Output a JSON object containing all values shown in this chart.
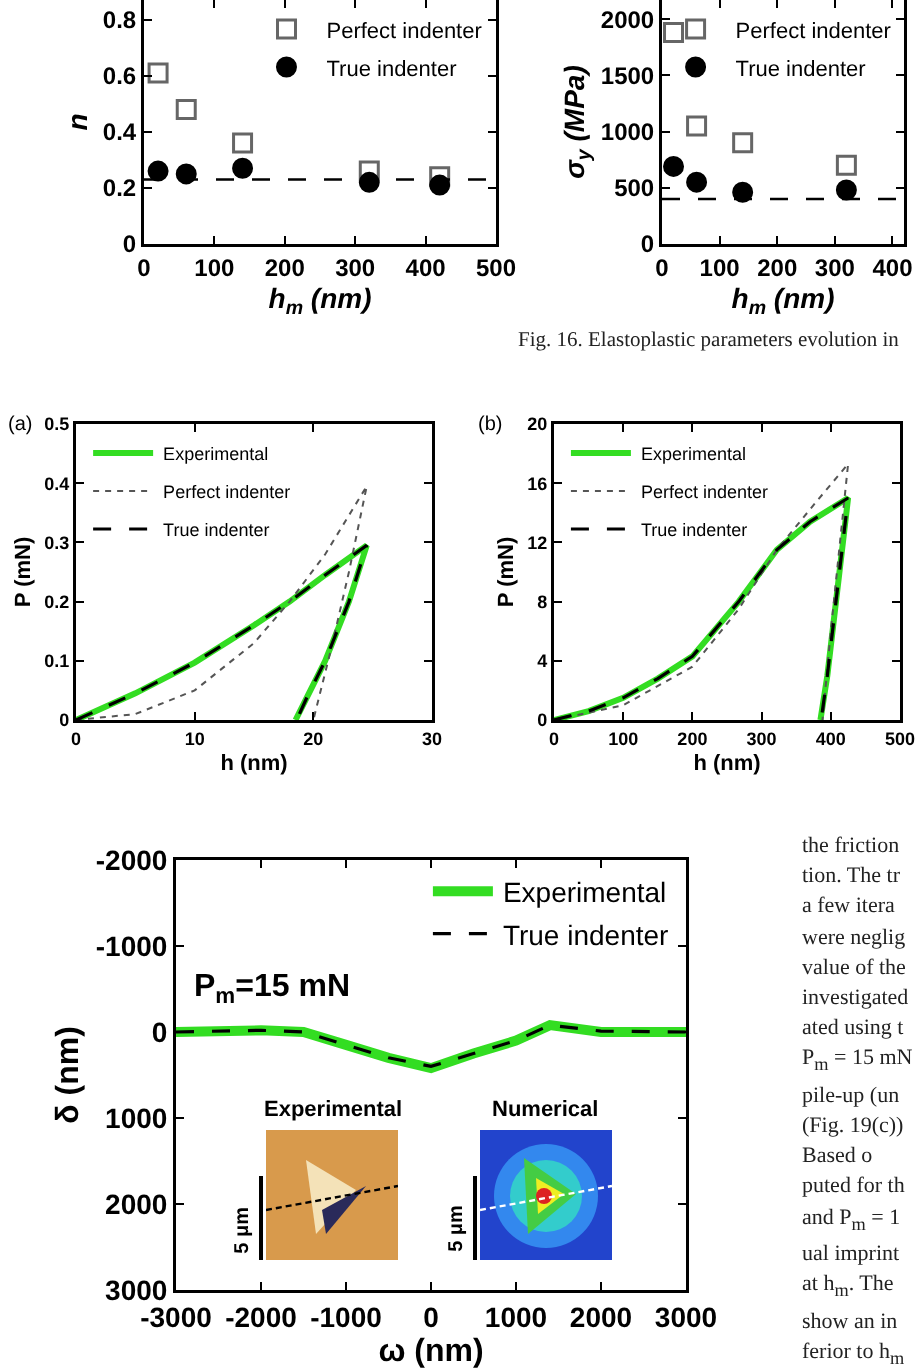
{
  "chart_data": [
    {
      "type": "scatter",
      "xlabel": "h$_{m}$ (nm)",
      "ylabel": "n",
      "xlim": [
        0,
        500
      ],
      "xticks": [
        0,
        100,
        200,
        300,
        400,
        500
      ],
      "ylim": [
        0,
        0.87
      ],
      "yticks": [
        0,
        0.2,
        0.4,
        0.6,
        0.8
      ],
      "grid": false,
      "legend": "top right",
      "series": [
        {
          "name": "Perfect indenter",
          "color": "#666666",
          "marker": "square",
          "x": [
            20,
            60,
            140,
            320,
            420
          ],
          "values": [
            0.61,
            0.48,
            0.36,
            0.26,
            0.24
          ]
        },
        {
          "name": "True indenter",
          "color": "#000000",
          "marker": "circle",
          "x": [
            20,
            60,
            140,
            320,
            420
          ],
          "values": [
            0.26,
            0.25,
            0.27,
            0.22,
            0.21
          ]
        }
      ],
      "ref_lines": [
        {
          "axis": "y",
          "value": 0.23,
          "color": "#000000",
          "line_style": "dashed"
        }
      ]
    },
    {
      "type": "scatter",
      "xlabel": "h$_{m}$ (nm)",
      "ylabel": "σ$_{y}$ (MPa)",
      "xlim": [
        0,
        420
      ],
      "xticks": [
        0,
        100,
        200,
        300,
        400
      ],
      "ylim": [
        0,
        2170
      ],
      "yticks": [
        0,
        500,
        1000,
        1500,
        2000
      ],
      "grid": false,
      "legend": "top right",
      "annotations": [
        "Fig. 16. Elastoplastic parameters evolution in"
      ],
      "series": [
        {
          "name": "Perfect indenter",
          "color": "#666666",
          "marker": "square",
          "x": [
            20,
            60,
            140,
            320
          ],
          "values": [
            1880,
            1050,
            900,
            700
          ]
        },
        {
          "name": "True indenter",
          "color": "#000000",
          "marker": "circle",
          "x": [
            20,
            60,
            140,
            320
          ],
          "values": [
            690,
            550,
            460,
            480
          ]
        }
      ],
      "ref_lines": [
        {
          "axis": "y",
          "value": 400,
          "color": "#000000",
          "line_style": "dashed"
        }
      ]
    },
    {
      "type": "line",
      "xlabel": "h (nm)",
      "ylabel": "P (mN)",
      "xlim": [
        0,
        30
      ],
      "xticks": [
        0,
        10,
        20,
        30
      ],
      "ylim": [
        0,
        0.5
      ],
      "yticks": [
        0,
        0.1,
        0.2,
        0.3,
        0.4,
        0.5
      ],
      "grid": false,
      "legend": "top left",
      "annotations": [
        "(a)"
      ],
      "series": [
        {
          "name": "Experimental",
          "color": "#33dd22",
          "line_style": "solid",
          "x": [
            0,
            5,
            10,
            15,
            18,
            21,
            24.5,
            23,
            21,
            19.5,
            18.5
          ],
          "values": [
            0,
            0.045,
            0.097,
            0.16,
            0.2,
            0.245,
            0.295,
            0.2,
            0.1,
            0.04,
            0
          ]
        },
        {
          "name": "Perfect indenter",
          "color": "#555555",
          "line_style": "dotted",
          "x": [
            0,
            5,
            10,
            15,
            18,
            21,
            24.5,
            23,
            21.5,
            20.5,
            20
          ],
          "values": [
            0,
            0.01,
            0.05,
            0.13,
            0.2,
            0.28,
            0.395,
            0.25,
            0.12,
            0.04,
            0
          ]
        },
        {
          "name": "True indenter",
          "color": "#000000",
          "line_style": "dashed",
          "x": [
            0,
            5,
            10,
            15,
            18,
            21,
            24.5,
            23,
            21,
            19.5,
            18.6
          ],
          "values": [
            0,
            0.045,
            0.097,
            0.16,
            0.2,
            0.245,
            0.295,
            0.2,
            0.1,
            0.04,
            0
          ]
        }
      ]
    },
    {
      "type": "line",
      "xlabel": "h (nm)",
      "ylabel": "P (mN)",
      "xlim": [
        0,
        500
      ],
      "xticks": [
        0,
        100,
        200,
        300,
        400,
        500
      ],
      "ylim": [
        0,
        20
      ],
      "yticks": [
        0,
        4,
        8,
        12,
        16,
        20
      ],
      "grid": false,
      "legend": "top left",
      "annotations": [
        "(b)"
      ],
      "series": [
        {
          "name": "Experimental",
          "color": "#33dd22",
          "line_style": "solid",
          "x": [
            0,
            50,
            100,
            150,
            200,
            267,
            322,
            370,
            425,
            410,
            395,
            385
          ],
          "values": [
            0,
            0.6,
            1.5,
            2.8,
            4.3,
            8,
            11.5,
            13.4,
            15,
            9,
            3,
            0
          ]
        },
        {
          "name": "Perfect indenter",
          "color": "#555555",
          "line_style": "dotted",
          "x": [
            0,
            100,
            200,
            267,
            322,
            380,
            425,
            400,
            388
          ],
          "values": [
            0,
            1,
            3.6,
            7.5,
            11.5,
            14.8,
            17.3,
            6,
            0
          ]
        },
        {
          "name": "True indenter",
          "color": "#000000",
          "line_style": "dashed",
          "x": [
            0,
            50,
            100,
            150,
            200,
            267,
            322,
            370,
            425,
            410,
            395,
            386
          ],
          "values": [
            0,
            0.6,
            1.5,
            2.8,
            4.3,
            8,
            11.5,
            13.4,
            15,
            9,
            3,
            0
          ]
        }
      ]
    },
    {
      "type": "line",
      "xlabel": "ω (nm)",
      "ylabel": "δ (nm)",
      "xlim": [
        -3000,
        3000
      ],
      "xticks": [
        -3000,
        -2000,
        -1000,
        0,
        1000,
        2000,
        3000
      ],
      "ylim": [
        3000,
        -2000
      ],
      "yticks": [
        -2000,
        -1000,
        0,
        1000,
        2000,
        3000
      ],
      "grid": false,
      "legend": "top right",
      "annotations": [
        "P$_{m}$=15 mN",
        "Experimental",
        "Numerical",
        "5 μm",
        "5 μm"
      ],
      "series": [
        {
          "name": "Experimental",
          "color": "#33dd22",
          "line_style": "solid",
          "x": [
            -3000,
            -2000,
            -1500,
            -1000,
            -500,
            0,
            500,
            1000,
            1400,
            2000,
            3000
          ],
          "values": [
            0,
            -20,
            0,
            150,
            300,
            420,
            250,
            100,
            -80,
            0,
            0
          ]
        },
        {
          "name": "True indenter",
          "color": "#000000",
          "line_style": "dashed",
          "x": [
            -3000,
            -2000,
            -1500,
            -1000,
            -500,
            0,
            500,
            1000,
            1400,
            2000,
            3000
          ],
          "values": [
            0,
            -20,
            0,
            150,
            300,
            400,
            250,
            100,
            -80,
            -10,
            0
          ]
        }
      ]
    },
    {
      "type": "other",
      "annotations": [
        "the friction",
        "tion. The tr",
        "a few itera",
        "were neglig",
        "value of the",
        "investigated",
        "ated using t",
        "P$_{m}$ = 15 mN",
        "pile-up (un",
        "(Fig. 19(c))",
        "Based o",
        "puted for th",
        "and P$_{m}$ = 1",
        "ual imprint",
        "at h$_{m}$. The",
        "show an in",
        "ferior to h$_{m}$"
      ]
    }
  ]
}
